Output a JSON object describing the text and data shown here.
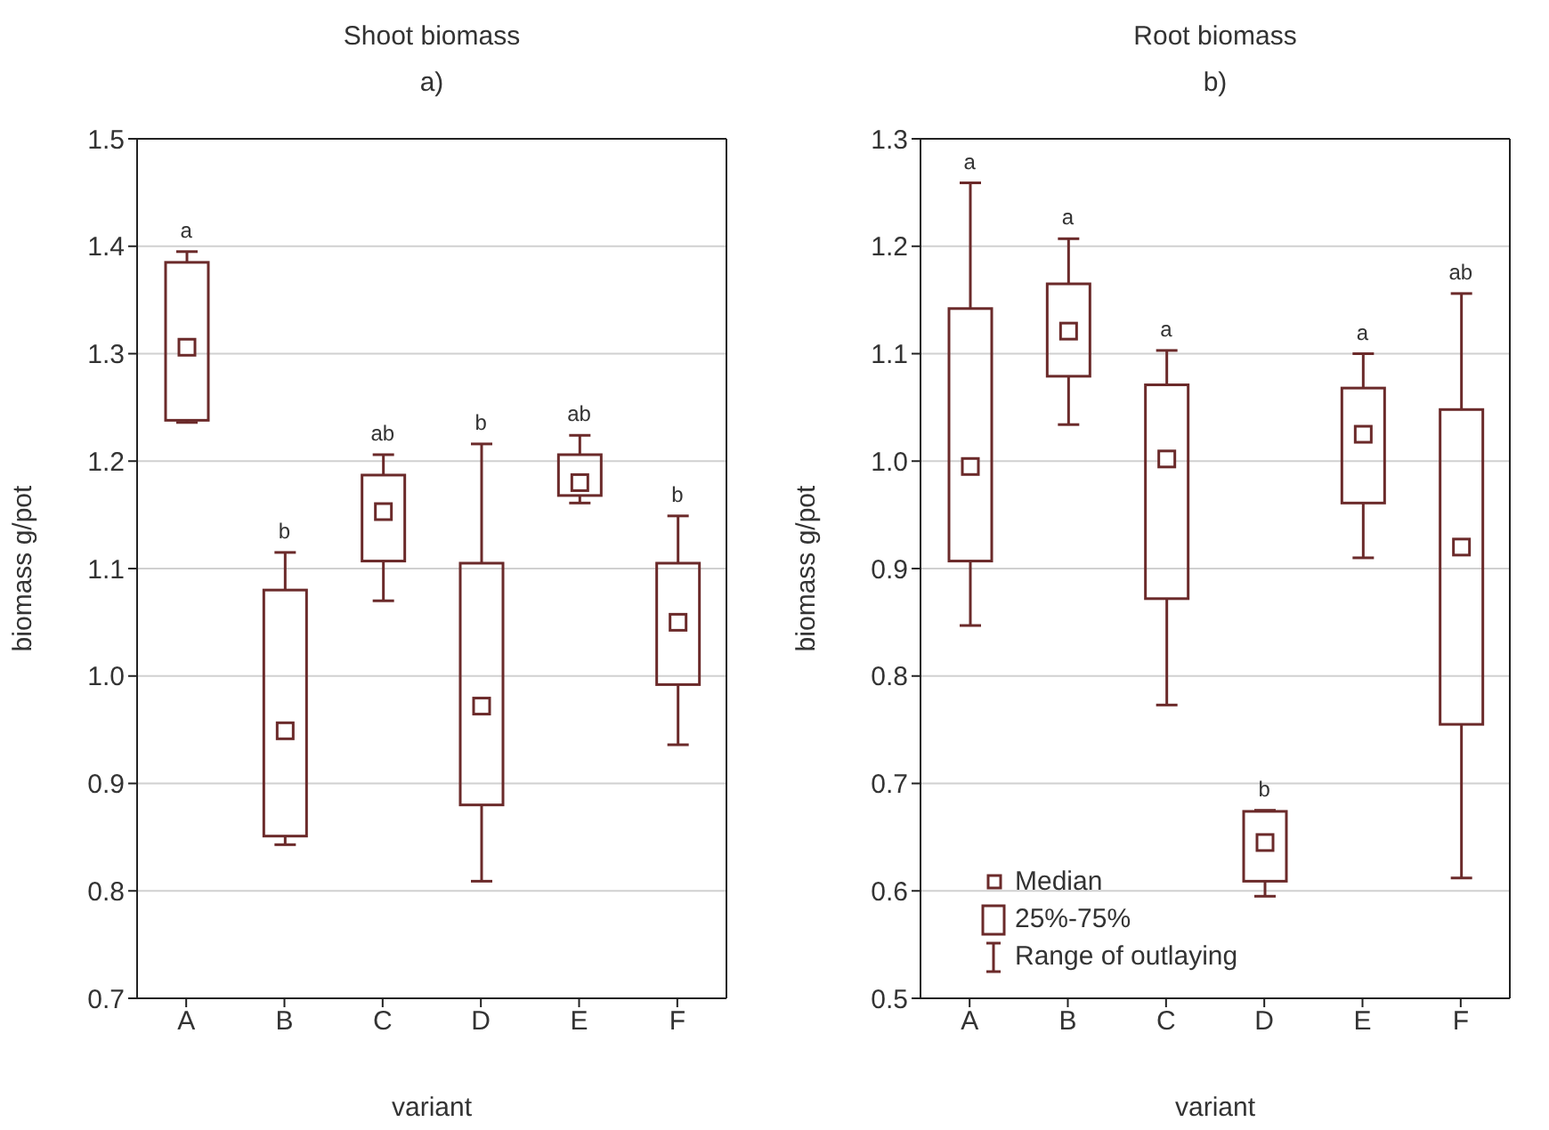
{
  "chart_data": [
    {
      "type": "box",
      "title": "Shoot biomass",
      "subtitle": "a)",
      "xlabel": "variant",
      "ylabel": "biomass g/pot",
      "categories": [
        "A",
        "B",
        "C",
        "D",
        "E",
        "F"
      ],
      "ylim": [
        0.7,
        1.5
      ],
      "yticks": [
        0.7,
        0.8,
        0.9,
        {
          "value": 1,
          "label": "1.0"
        },
        1.1,
        1.2,
        1.3,
        1.4,
        1.5
      ],
      "grid": "y",
      "marker": "square",
      "series": [
        {
          "color": "#6b2a2a",
          "boxes": [
            {
              "low": 1.236,
              "q1": 1.238,
              "median": 1.306,
              "q3": 1.385,
              "high": 1.395
            },
            {
              "low": 0.843,
              "q1": 0.851,
              "median": 0.949,
              "q3": 1.08,
              "high": 1.115
            },
            {
              "low": 1.07,
              "q1": 1.107,
              "median": 1.153,
              "q3": 1.187,
              "high": 1.206
            },
            {
              "low": 0.809,
              "q1": 0.88,
              "median": 0.972,
              "q3": 1.105,
              "high": 1.216
            },
            {
              "low": 1.161,
              "q1": 1.168,
              "median": 1.18,
              "q3": 1.206,
              "high": 1.224
            },
            {
              "low": 0.936,
              "q1": 0.992,
              "median": 1.05,
              "q3": 1.105,
              "high": 1.149
            }
          ]
        }
      ],
      "annotations": [
        "a",
        "b",
        "ab",
        "b",
        "ab",
        "b"
      ]
    },
    {
      "type": "box",
      "title": "Root biomass",
      "subtitle": "b)",
      "xlabel": "variant",
      "ylabel": "biomass g/pot",
      "categories": [
        "A",
        "B",
        "C",
        "D",
        "E",
        "F"
      ],
      "ylim": [
        0.5,
        1.3
      ],
      "yticks": [
        0.5,
        0.6,
        0.7,
        0.8,
        0.9,
        {
          "value": 1,
          "label": "1.0"
        },
        1.1,
        1.2,
        1.3
      ],
      "grid": "y",
      "marker": "square",
      "series": [
        {
          "color": "#6b2a2a",
          "boxes": [
            {
              "low": 0.847,
              "q1": 0.907,
              "median": 0.995,
              "q3": 1.142,
              "high": 1.259
            },
            {
              "low": 1.034,
              "q1": 1.079,
              "median": 1.121,
              "q3": 1.165,
              "high": 1.207
            },
            {
              "low": 0.773,
              "q1": 0.872,
              "median": 1.002,
              "q3": 1.071,
              "high": 1.103
            },
            {
              "low": 0.595,
              "q1": 0.609,
              "median": 0.645,
              "q3": 0.674,
              "high": 0.675
            },
            {
              "low": 0.91,
              "q1": 0.961,
              "median": 1.025,
              "q3": 1.068,
              "high": 1.1
            },
            {
              "low": 0.612,
              "q1": 0.755,
              "median": 0.92,
              "q3": 1.048,
              "high": 1.156
            }
          ]
        }
      ],
      "annotations": [
        "a",
        "a",
        "a",
        "b",
        "a",
        "ab",
        "Median",
        "25%-75%",
        "Range of outlaying"
      ]
    }
  ]
}
